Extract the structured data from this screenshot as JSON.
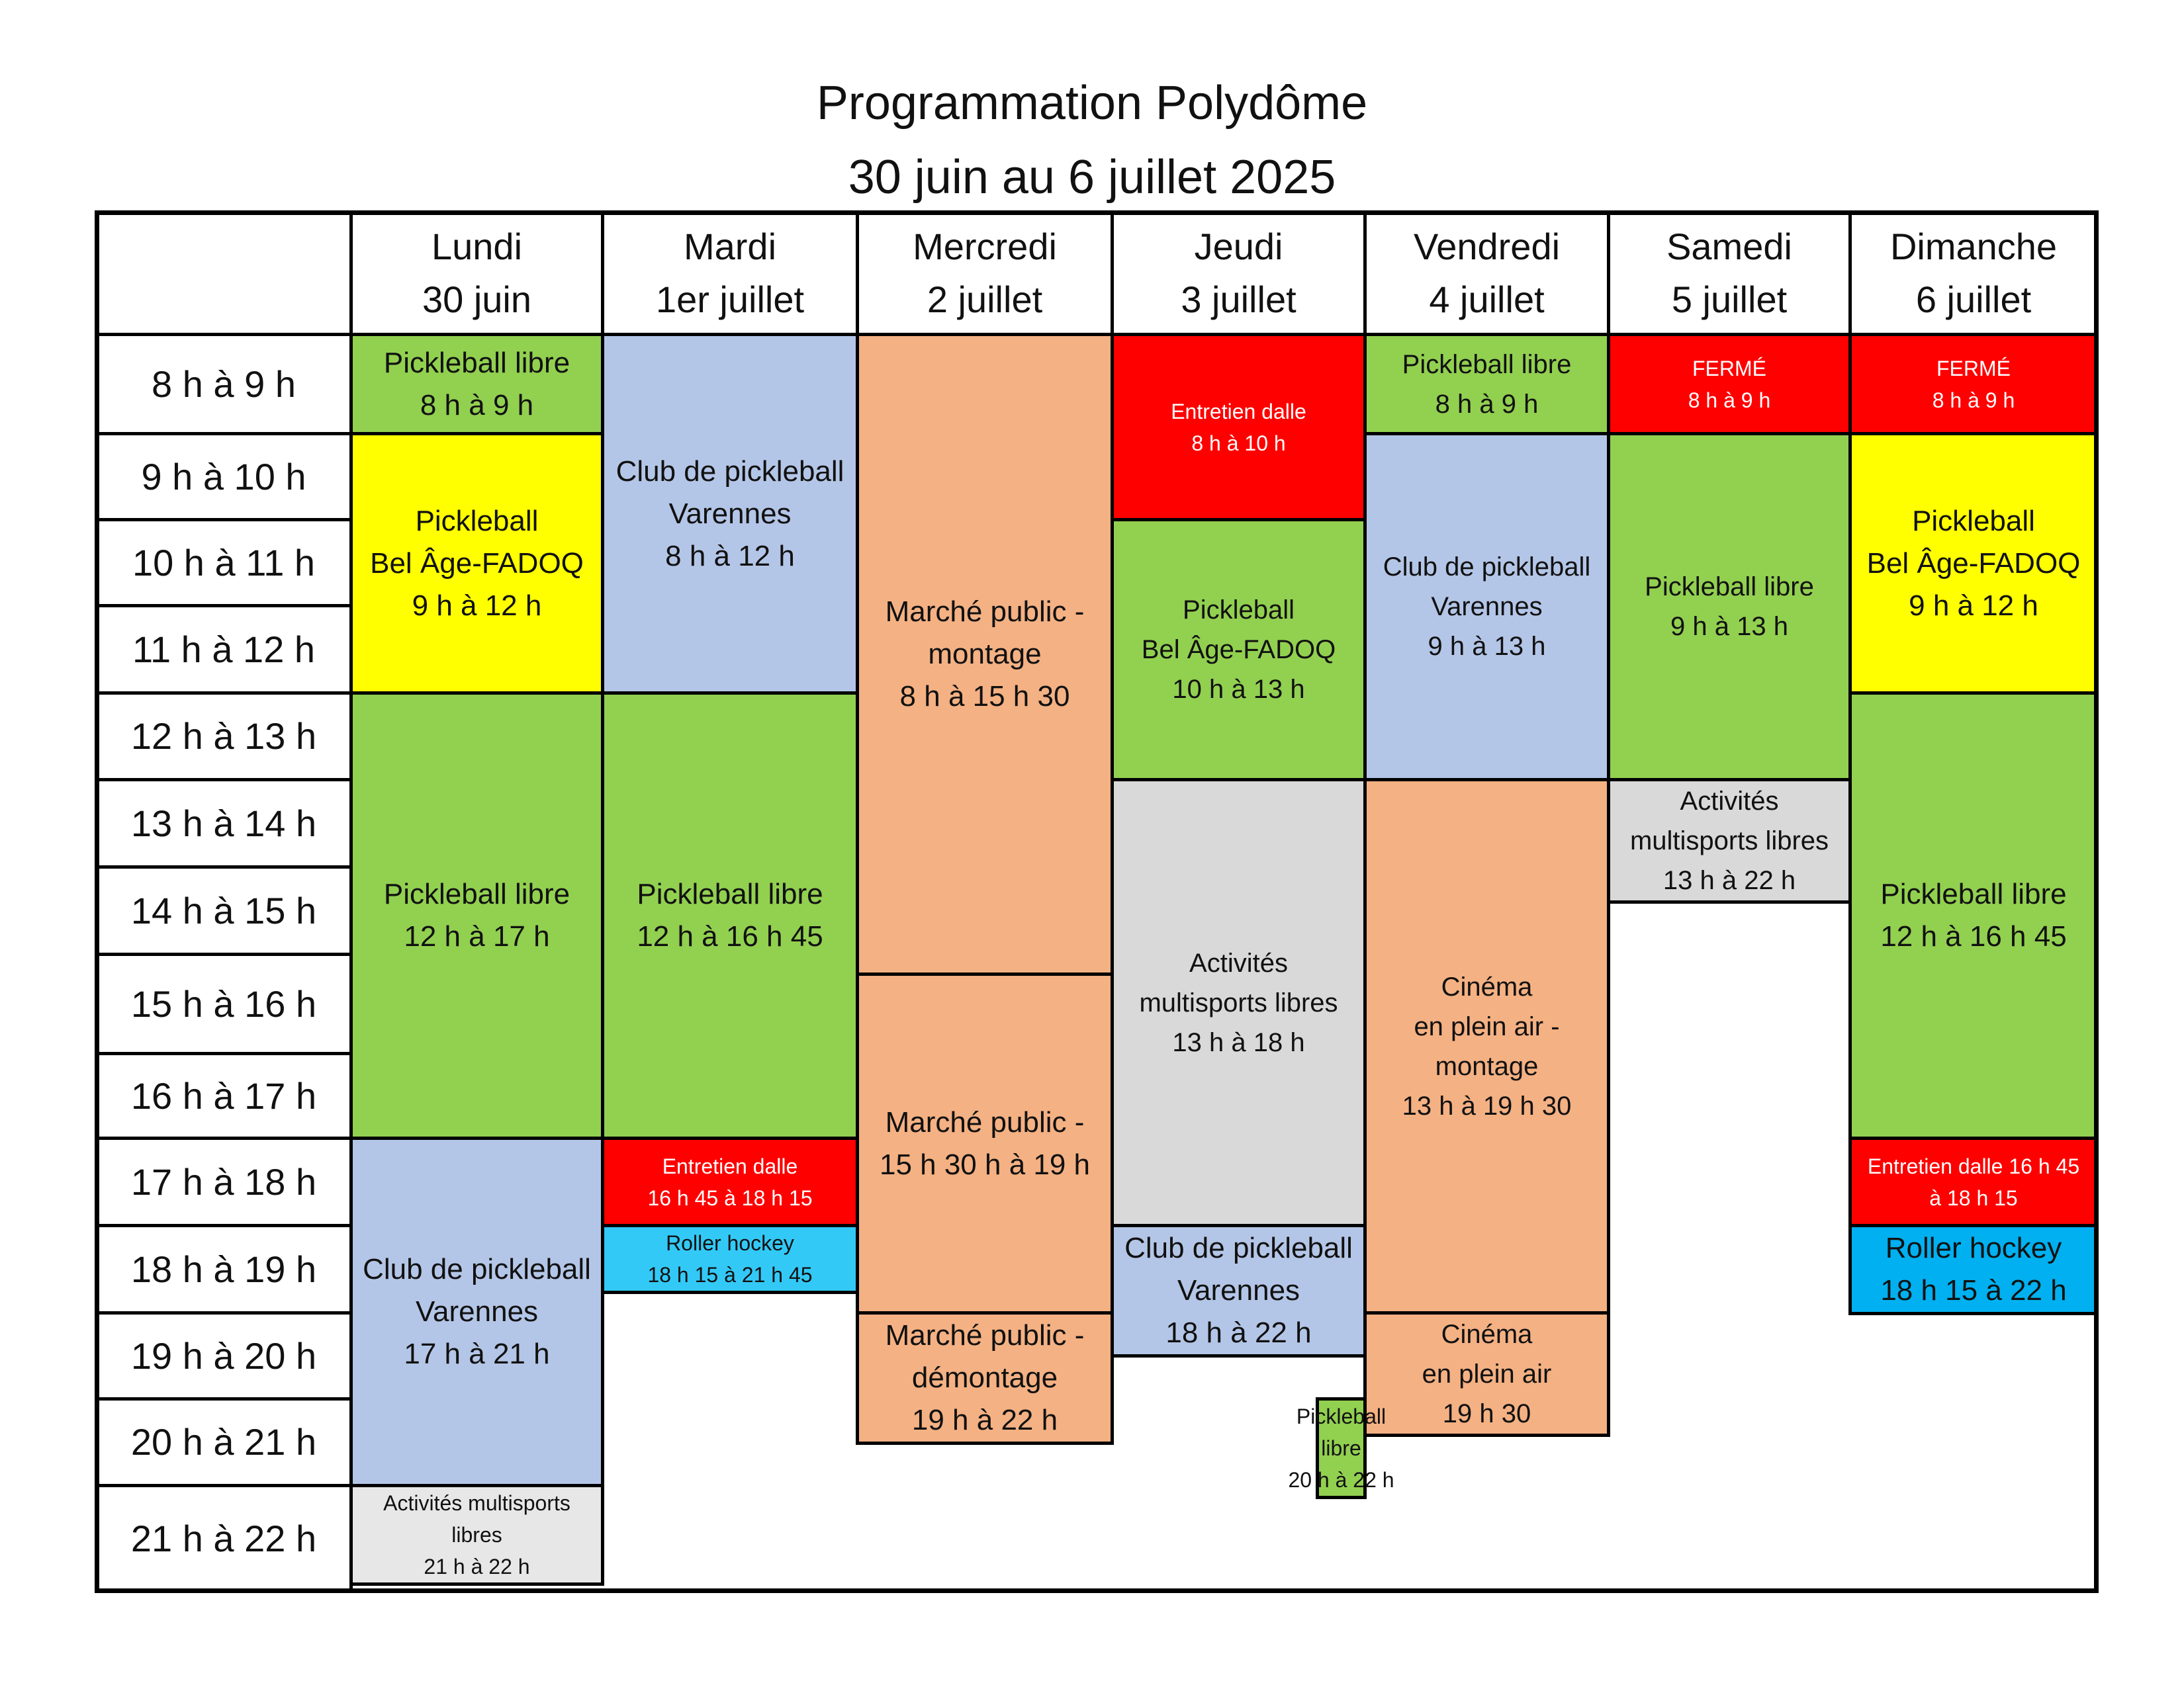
{
  "title": {
    "line1": "Programmation Polydôme",
    "line2": "30 juin au 6 juillet 2025"
  },
  "days": [
    {
      "name": "Lundi",
      "date": "30 juin"
    },
    {
      "name": "Mardi",
      "date": "1er juillet"
    },
    {
      "name": "Mercredi",
      "date": "2 juillet"
    },
    {
      "name": "Jeudi",
      "date": "3 juillet"
    },
    {
      "name": "Vendredi",
      "date": "4 juillet"
    },
    {
      "name": "Samedi",
      "date": "5 juillet"
    },
    {
      "name": "Dimanche",
      "date": "6 juillet"
    }
  ],
  "times": [
    "8 h à 9 h",
    "9 h à 10 h",
    "10 h à 11 h",
    "11 h à 12 h",
    "12 h à 13 h",
    "13 h à 14 h",
    "14 h à 15 h",
    "15 h à 16 h",
    "16 h à 17 h",
    "17 h à 18 h",
    "18 h à 19 h",
    "19 h à 20 h",
    "20 h à 21 h",
    "21 h à 22 h"
  ],
  "colors": {
    "green": "#92d050",
    "yellow": "#ffff00",
    "lavender": "#b4c6e7",
    "salmon": "#f4b183",
    "red": "#ff0000",
    "gray": "#d9d9d9",
    "lightgray": "#e7e7e7",
    "skyblue": "#33c9f7",
    "blue": "#00b0f0"
  },
  "events": {
    "lundi": [
      {
        "lines": [
          "Pickleball libre",
          "8 h à 9 h"
        ]
      },
      {
        "lines": [
          "Pickleball",
          "Bel Âge-FADOQ",
          "9 h à 12 h"
        ]
      },
      {
        "lines": [
          "Pickleball libre",
          "12 h à 17 h"
        ]
      },
      {
        "lines": [
          "Club de pickleball",
          "Varennes",
          "17 h à 21 h"
        ]
      },
      {
        "lines": [
          "Activités multisports",
          "libres",
          "21  h à 22  h"
        ]
      }
    ],
    "mardi": [
      {
        "lines": [
          "Club de pickleball",
          "Varennes",
          "8 h à 12 h"
        ]
      },
      {
        "lines": [
          "Pickleball libre",
          "12 h à 16 h 45"
        ]
      },
      {
        "lines": [
          "Entretien dalle",
          "16 h 45 à 18 h 15"
        ]
      },
      {
        "lines": [
          "Roller hockey",
          "18 h 15 à 21 h 45"
        ]
      }
    ],
    "mercredi": [
      {
        "lines": [
          "Marché public -",
          "montage",
          "8 h à 15 h 30"
        ]
      },
      {
        "lines": [
          "Marché public -",
          "15 h 30 h à 19 h"
        ]
      },
      {
        "lines": [
          "Marché public -",
          "démontage",
          "19 h à 22 h"
        ]
      }
    ],
    "jeudi": [
      {
        "lines": [
          "Entretien dalle",
          "8 h à 10 h"
        ]
      },
      {
        "lines": [
          "Pickleball",
          "Bel Âge-FADOQ",
          "10 h à 13 h"
        ]
      },
      {
        "lines": [
          "Activités",
          "multisports libres",
          "13 h à 18 h"
        ]
      },
      {
        "lines": [
          "Club de pickleball",
          "Varennes",
          "18 h à 22 h"
        ]
      },
      {
        "lines": [
          "Pickleball",
          "libre",
          "20 h à 22 h"
        ]
      }
    ],
    "vendredi": [
      {
        "lines": [
          "Pickleball libre",
          "8 h à 9 h"
        ]
      },
      {
        "lines": [
          "Club de pickleball",
          "Varennes",
          "9 h à 13 h"
        ]
      },
      {
        "lines": [
          "Cinéma",
          "en plein air -",
          "montage",
          "13 h à 19 h 30"
        ]
      },
      {
        "lines": [
          "Cinéma",
          "en plein air",
          "19 h 30"
        ]
      }
    ],
    "samedi": [
      {
        "lines": [
          "FERMÉ",
          "8 h à 9 h"
        ]
      },
      {
        "lines": [
          "Pickleball libre",
          "9 h à 13 h"
        ]
      },
      {
        "lines": [
          "Activités",
          "multisports libres",
          "13 h à 22 h"
        ]
      }
    ],
    "dimanche": [
      {
        "lines": [
          "FERMÉ",
          "8 h à 9 h"
        ]
      },
      {
        "lines": [
          "Pickleball",
          "Bel Âge-FADOQ",
          "9 h à 12 h"
        ]
      },
      {
        "lines": [
          "Pickleball libre",
          "12 h à 16 h 45"
        ]
      },
      {
        "lines": [
          "Entretien dalle 16 h 45",
          "à 18 h 15"
        ]
      },
      {
        "lines": [
          "Roller hockey",
          "18 h 15 à 22 h"
        ]
      }
    ]
  }
}
